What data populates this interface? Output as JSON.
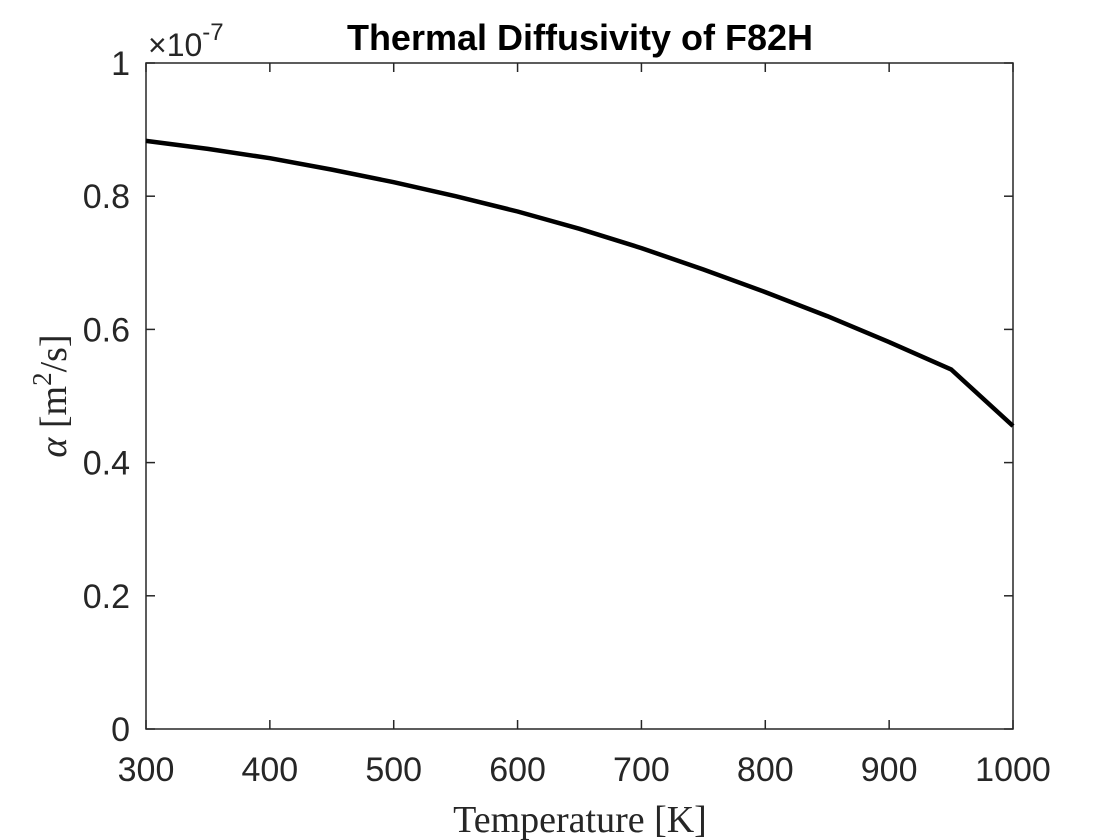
{
  "chart_data": {
    "type": "line",
    "title": "Thermal Diffusivity of F82H",
    "xlabel": "Temperature [K]",
    "ylabel": {
      "symbol": "α",
      "unit_open": "[m",
      "unit_exp": "2",
      "unit_close": "/s]"
    },
    "exponent_label": {
      "times": "×10",
      "power": "-7"
    },
    "xlim": [
      300,
      1000
    ],
    "ylim": [
      0,
      1
    ],
    "y_scale_factor": 1e-07,
    "xticks": [
      300,
      400,
      500,
      600,
      700,
      800,
      900,
      1000
    ],
    "xtick_labels": [
      "300",
      "400",
      "500",
      "600",
      "700",
      "800",
      "900",
      "1000"
    ],
    "yticks": [
      0,
      0.2,
      0.4,
      0.6,
      0.8,
      1
    ],
    "ytick_labels": [
      "0",
      "0.2",
      "0.4",
      "0.6",
      "0.8",
      "1"
    ],
    "grid": false,
    "series": [
      {
        "color": "#000000",
        "x": [
          300,
          350,
          400,
          450,
          500,
          550,
          600,
          650,
          700,
          750,
          800,
          850,
          900,
          950,
          1000
        ],
        "values": [
          0.883,
          0.871,
          0.857,
          0.84,
          0.821,
          0.8,
          0.777,
          0.751,
          0.722,
          0.69,
          0.656,
          0.62,
          0.581,
          0.54,
          0.455
        ]
      }
    ]
  }
}
